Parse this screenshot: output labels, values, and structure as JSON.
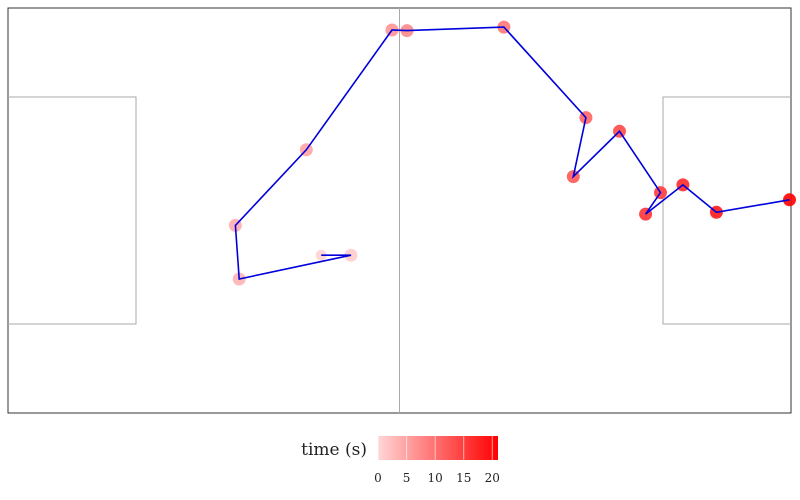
{
  "chart_data": {
    "type": "scatter",
    "description_kind": "pass sequence on a football pitch",
    "x_range": [
      0,
      105
    ],
    "y_range": [
      0,
      68
    ],
    "color_scale": {
      "title": "time (s)",
      "min": 0,
      "max": 21,
      "ticks": [
        0,
        5,
        10,
        15,
        20
      ],
      "low_color": "#ffd6d6",
      "high_color": "#ff0000"
    },
    "line_color": "#0000dd",
    "points": [
      {
        "x": 42.0,
        "y": 26.5,
        "t": 0.3
      },
      {
        "x": 46.0,
        "y": 26.5,
        "t": 1.0
      },
      {
        "x": 31.0,
        "y": 22.5,
        "t": 3.3
      },
      {
        "x": 30.5,
        "y": 31.5,
        "t": 4.0
      },
      {
        "x": 40.0,
        "y": 44.2,
        "t": 4.9
      },
      {
        "x": 51.5,
        "y": 64.3,
        "t": 6.5
      },
      {
        "x": 53.5,
        "y": 64.2,
        "t": 7.5
      },
      {
        "x": 66.5,
        "y": 64.8,
        "t": 9.2
      },
      {
        "x": 77.5,
        "y": 49.6,
        "t": 11.2
      },
      {
        "x": 75.8,
        "y": 39.7,
        "t": 12.4
      },
      {
        "x": 82.0,
        "y": 47.3,
        "t": 13.9
      },
      {
        "x": 87.5,
        "y": 37.0,
        "t": 15.1
      },
      {
        "x": 85.5,
        "y": 33.4,
        "t": 16.0
      },
      {
        "x": 90.5,
        "y": 38.3,
        "t": 17.0
      },
      {
        "x": 95.0,
        "y": 33.7,
        "t": 18.6
      },
      {
        "x": 104.8,
        "y": 35.8,
        "t": 20.9
      }
    ]
  }
}
